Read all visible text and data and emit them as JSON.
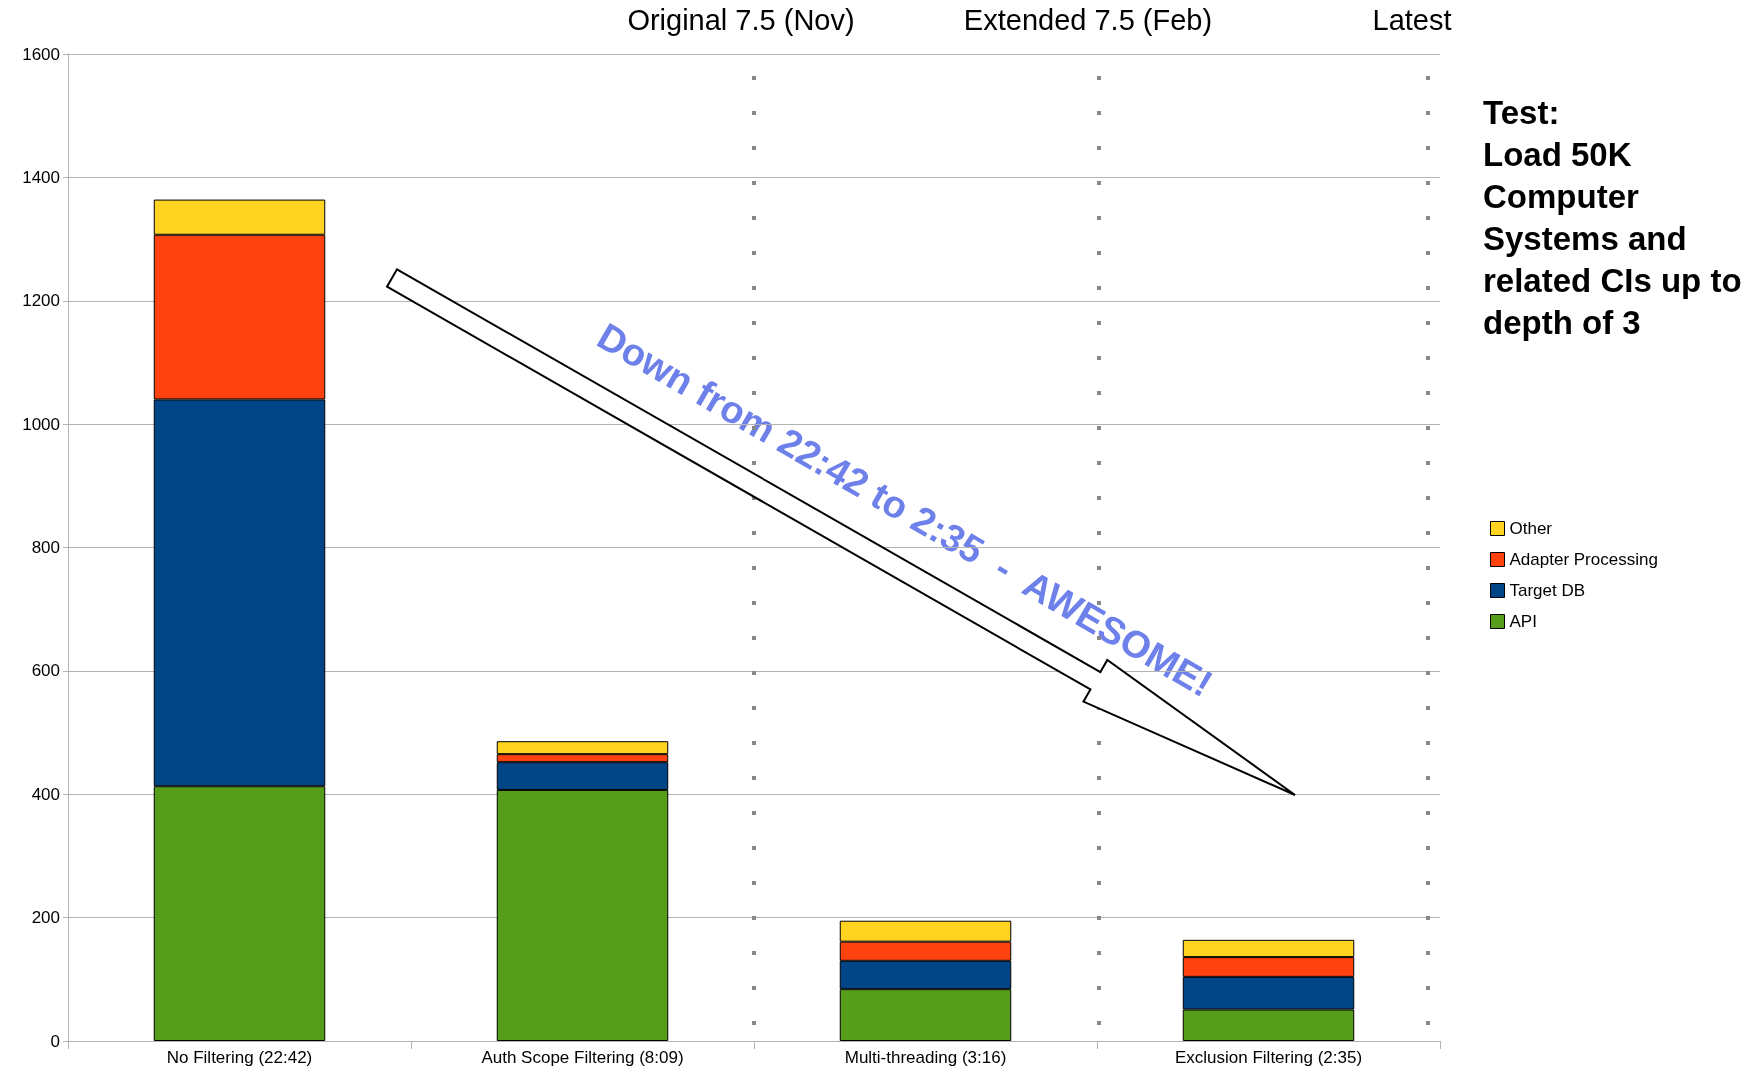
{
  "chart_data": {
    "type": "bar",
    "stacked": true,
    "categories": [
      "No Filtering (22:42)",
      "Auth Scope Filtering (8:09)",
      "Multi-threading (3:16)",
      "Exclusion Filtering (2:35)"
    ],
    "series": [
      {
        "name": "API",
        "color": "#579d1c",
        "values": [
          413,
          407,
          84,
          51
        ]
      },
      {
        "name": "Target DB",
        "color": "#004586",
        "values": [
          627,
          45,
          46,
          53
        ]
      },
      {
        "name": "Adapter Processing",
        "color": "#ff420e",
        "values": [
          267,
          13,
          31,
          32
        ]
      },
      {
        "name": "Other",
        "color": "#ffd320",
        "values": [
          57,
          21,
          34,
          28
        ]
      }
    ],
    "ylim": [
      0,
      1600
    ],
    "yticks": [
      0,
      200,
      400,
      600,
      800,
      1000,
      1200,
      1400,
      1600
    ],
    "grid": "y",
    "legend": "right",
    "annotations": [
      "Down from 22:42 to 2:35  -  AWESOME!",
      "Test:\nLoad 50K Computer Systems and related CIs up to depth of 3",
      "Original 7.5 (Nov)",
      "Extended 7.5 (Feb)",
      "Latest"
    ]
  }
}
